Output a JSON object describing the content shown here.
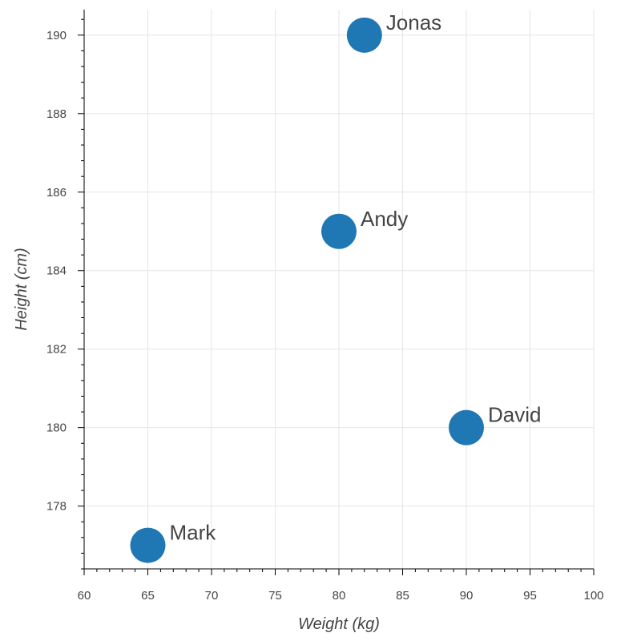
{
  "chart_data": {
    "type": "scatter",
    "xlabel": "Weight (kg)",
    "ylabel": "Height (cm)",
    "xlim": [
      60,
      100
    ],
    "ylim": [
      176.4,
      190.65
    ],
    "x_ticks": [
      60,
      65,
      70,
      75,
      80,
      85,
      90,
      95,
      100
    ],
    "y_ticks": [
      178,
      180,
      182,
      184,
      186,
      188,
      190
    ],
    "grid": true,
    "point_color": "#1f77b4",
    "points": [
      {
        "name": "Mark",
        "x": 65,
        "y": 177
      },
      {
        "name": "Andy",
        "x": 80,
        "y": 185
      },
      {
        "name": "Jonas",
        "x": 82,
        "y": 190
      },
      {
        "name": "David",
        "x": 90,
        "y": 180
      }
    ]
  }
}
